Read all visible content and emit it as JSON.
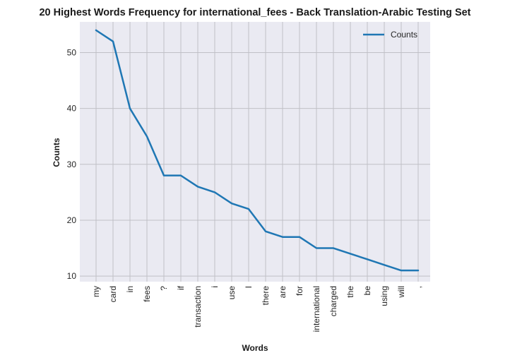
{
  "chart_data": {
    "type": "line",
    "title": "20 Highest Words Frequency for international_fees - Back Translation-Arabic Testing Set",
    "xlabel": "Words",
    "ylabel": "Counts",
    "categories": [
      "my",
      "card",
      "in",
      "fees",
      "?",
      "if",
      "transaction",
      "i",
      "use",
      "I",
      "there",
      "are",
      "for",
      "international",
      "charged",
      "the",
      "be",
      "using",
      "will",
      ","
    ],
    "series": [
      {
        "name": "Counts",
        "values": [
          54,
          52,
          40,
          35,
          28,
          28,
          26,
          25,
          23,
          22,
          18,
          17,
          17,
          15,
          15,
          14,
          13,
          12,
          11,
          11
        ]
      }
    ],
    "ylim": [
      9,
      55.5
    ],
    "yticks": [
      10,
      20,
      30,
      40,
      50
    ],
    "grid": true,
    "legend_position": "top-right",
    "colors": {
      "line": "#1f77b4",
      "plot_background": "#eaeaf2",
      "grid": "#c0c0c6"
    }
  }
}
